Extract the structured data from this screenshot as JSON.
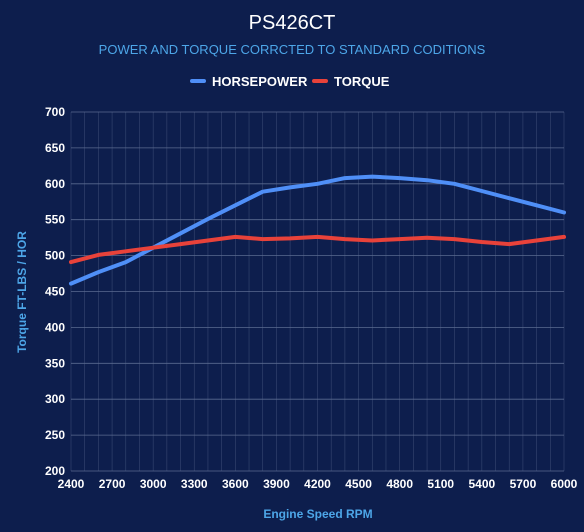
{
  "colors": {
    "background": "#0d1e4d",
    "title": "#ffffff",
    "subtitle": "#4da6e8",
    "axis_label": "#4da6e8",
    "tick": "#ffffff",
    "grid": "#5a6a90",
    "horsepower": "#4f8ff7",
    "torque": "#e8423a"
  },
  "chart_data": {
    "type": "line",
    "title": "PS426CT",
    "subtitle": "POWER AND TORQUE CORRCTED TO STANDARD CODITIONS",
    "xlabel": "Engine Speed RPM",
    "ylabel": "Torque FT-LBS / HOR",
    "legend_position": "top-center",
    "grid": true,
    "xlim": [
      2400,
      6000
    ],
    "ylim": [
      200,
      700
    ],
    "xticks": [
      2400,
      2700,
      3000,
      3300,
      3600,
      3900,
      4200,
      4500,
      4800,
      5100,
      5400,
      5700,
      6000
    ],
    "yticks": [
      200,
      250,
      300,
      350,
      400,
      450,
      500,
      550,
      600,
      650,
      700
    ],
    "series": [
      {
        "name": "HORSEPOWER",
        "color": "#4f8ff7",
        "points": [
          [
            2400,
            461
          ],
          [
            2600,
            477
          ],
          [
            2800,
            491
          ],
          [
            3000,
            511
          ],
          [
            3200,
            531
          ],
          [
            3400,
            551
          ],
          [
            3600,
            570
          ],
          [
            3800,
            589
          ],
          [
            4000,
            595
          ],
          [
            4200,
            600
          ],
          [
            4400,
            608
          ],
          [
            4600,
            610
          ],
          [
            4800,
            608
          ],
          [
            5000,
            605
          ],
          [
            5200,
            600
          ],
          [
            5400,
            590
          ],
          [
            5600,
            580
          ],
          [
            5800,
            570
          ],
          [
            6000,
            560
          ]
        ]
      },
      {
        "name": "TORQUE",
        "color": "#e8423a",
        "points": [
          [
            2400,
            491
          ],
          [
            2600,
            501
          ],
          [
            2800,
            506
          ],
          [
            3000,
            511
          ],
          [
            3200,
            516
          ],
          [
            3400,
            521
          ],
          [
            3600,
            526
          ],
          [
            3800,
            523
          ],
          [
            4000,
            524
          ],
          [
            4200,
            526
          ],
          [
            4400,
            523
          ],
          [
            4600,
            521
          ],
          [
            4800,
            523
          ],
          [
            5000,
            525
          ],
          [
            5200,
            523
          ],
          [
            5400,
            519
          ],
          [
            5600,
            516
          ],
          [
            5800,
            521
          ],
          [
            6000,
            526
          ]
        ]
      }
    ]
  }
}
